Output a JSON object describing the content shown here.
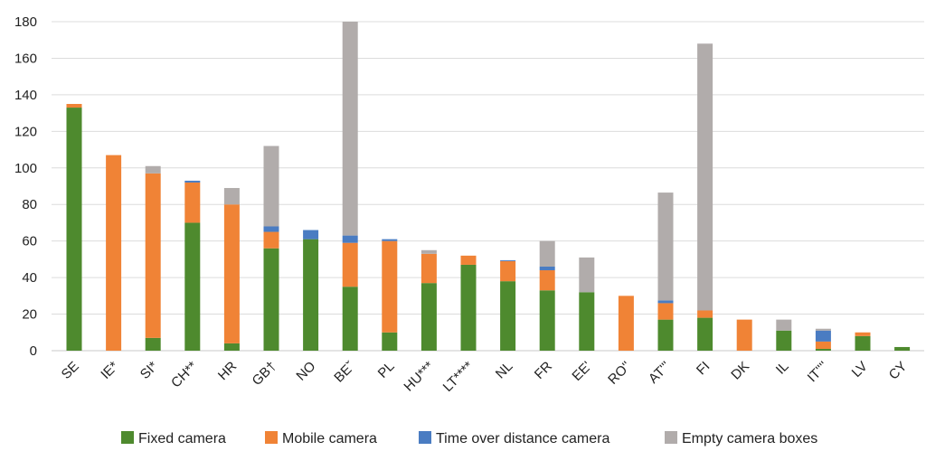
{
  "chart_data": {
    "type": "bar",
    "stacked": true,
    "title": "",
    "xlabel": "",
    "ylabel": "",
    "ylim": [
      0,
      180
    ],
    "yticks": [
      0,
      20,
      40,
      60,
      80,
      100,
      120,
      140,
      160,
      180
    ],
    "grid": true,
    "legend_position": "bottom",
    "categories": [
      "SE",
      "IE*",
      "SI*",
      "CH**",
      "HR",
      "GB†",
      "NO",
      "BEˇ",
      "PL",
      "HU***",
      "LT****",
      "NL",
      "FR",
      "EE'",
      "RO''",
      "AT'''",
      "FI",
      "DK",
      "IL",
      "IT''''",
      "LV",
      "CY"
    ],
    "series": [
      {
        "name": "Fixed camera",
        "color": "#4e8a2e",
        "values": [
          133,
          0,
          7,
          70,
          4,
          56,
          61,
          35,
          10,
          37,
          47,
          38,
          33,
          32,
          0,
          17,
          18,
          0,
          11,
          1,
          8,
          2
        ]
      },
      {
        "name": "Mobile camera",
        "color": "#f08336",
        "values": [
          2,
          107,
          90,
          22,
          76,
          9,
          0,
          24,
          50,
          16,
          5,
          11,
          11,
          0,
          30,
          9,
          4,
          17,
          0,
          4,
          2,
          0
        ]
      },
      {
        "name": "Time over distance camera",
        "color": "#4a7cc2",
        "values": [
          0,
          0,
          0,
          1,
          0,
          3,
          5,
          4,
          1,
          0,
          0,
          0.5,
          2,
          0,
          0,
          1.5,
          0,
          0,
          0,
          6,
          0,
          0
        ]
      },
      {
        "name": "Empty camera boxes",
        "color": "#b1acab",
        "values": [
          0,
          0,
          4,
          0,
          9,
          44,
          0,
          117,
          0,
          2,
          0,
          0,
          14,
          19,
          0,
          59,
          146,
          0,
          6,
          1,
          0,
          0
        ]
      }
    ]
  }
}
